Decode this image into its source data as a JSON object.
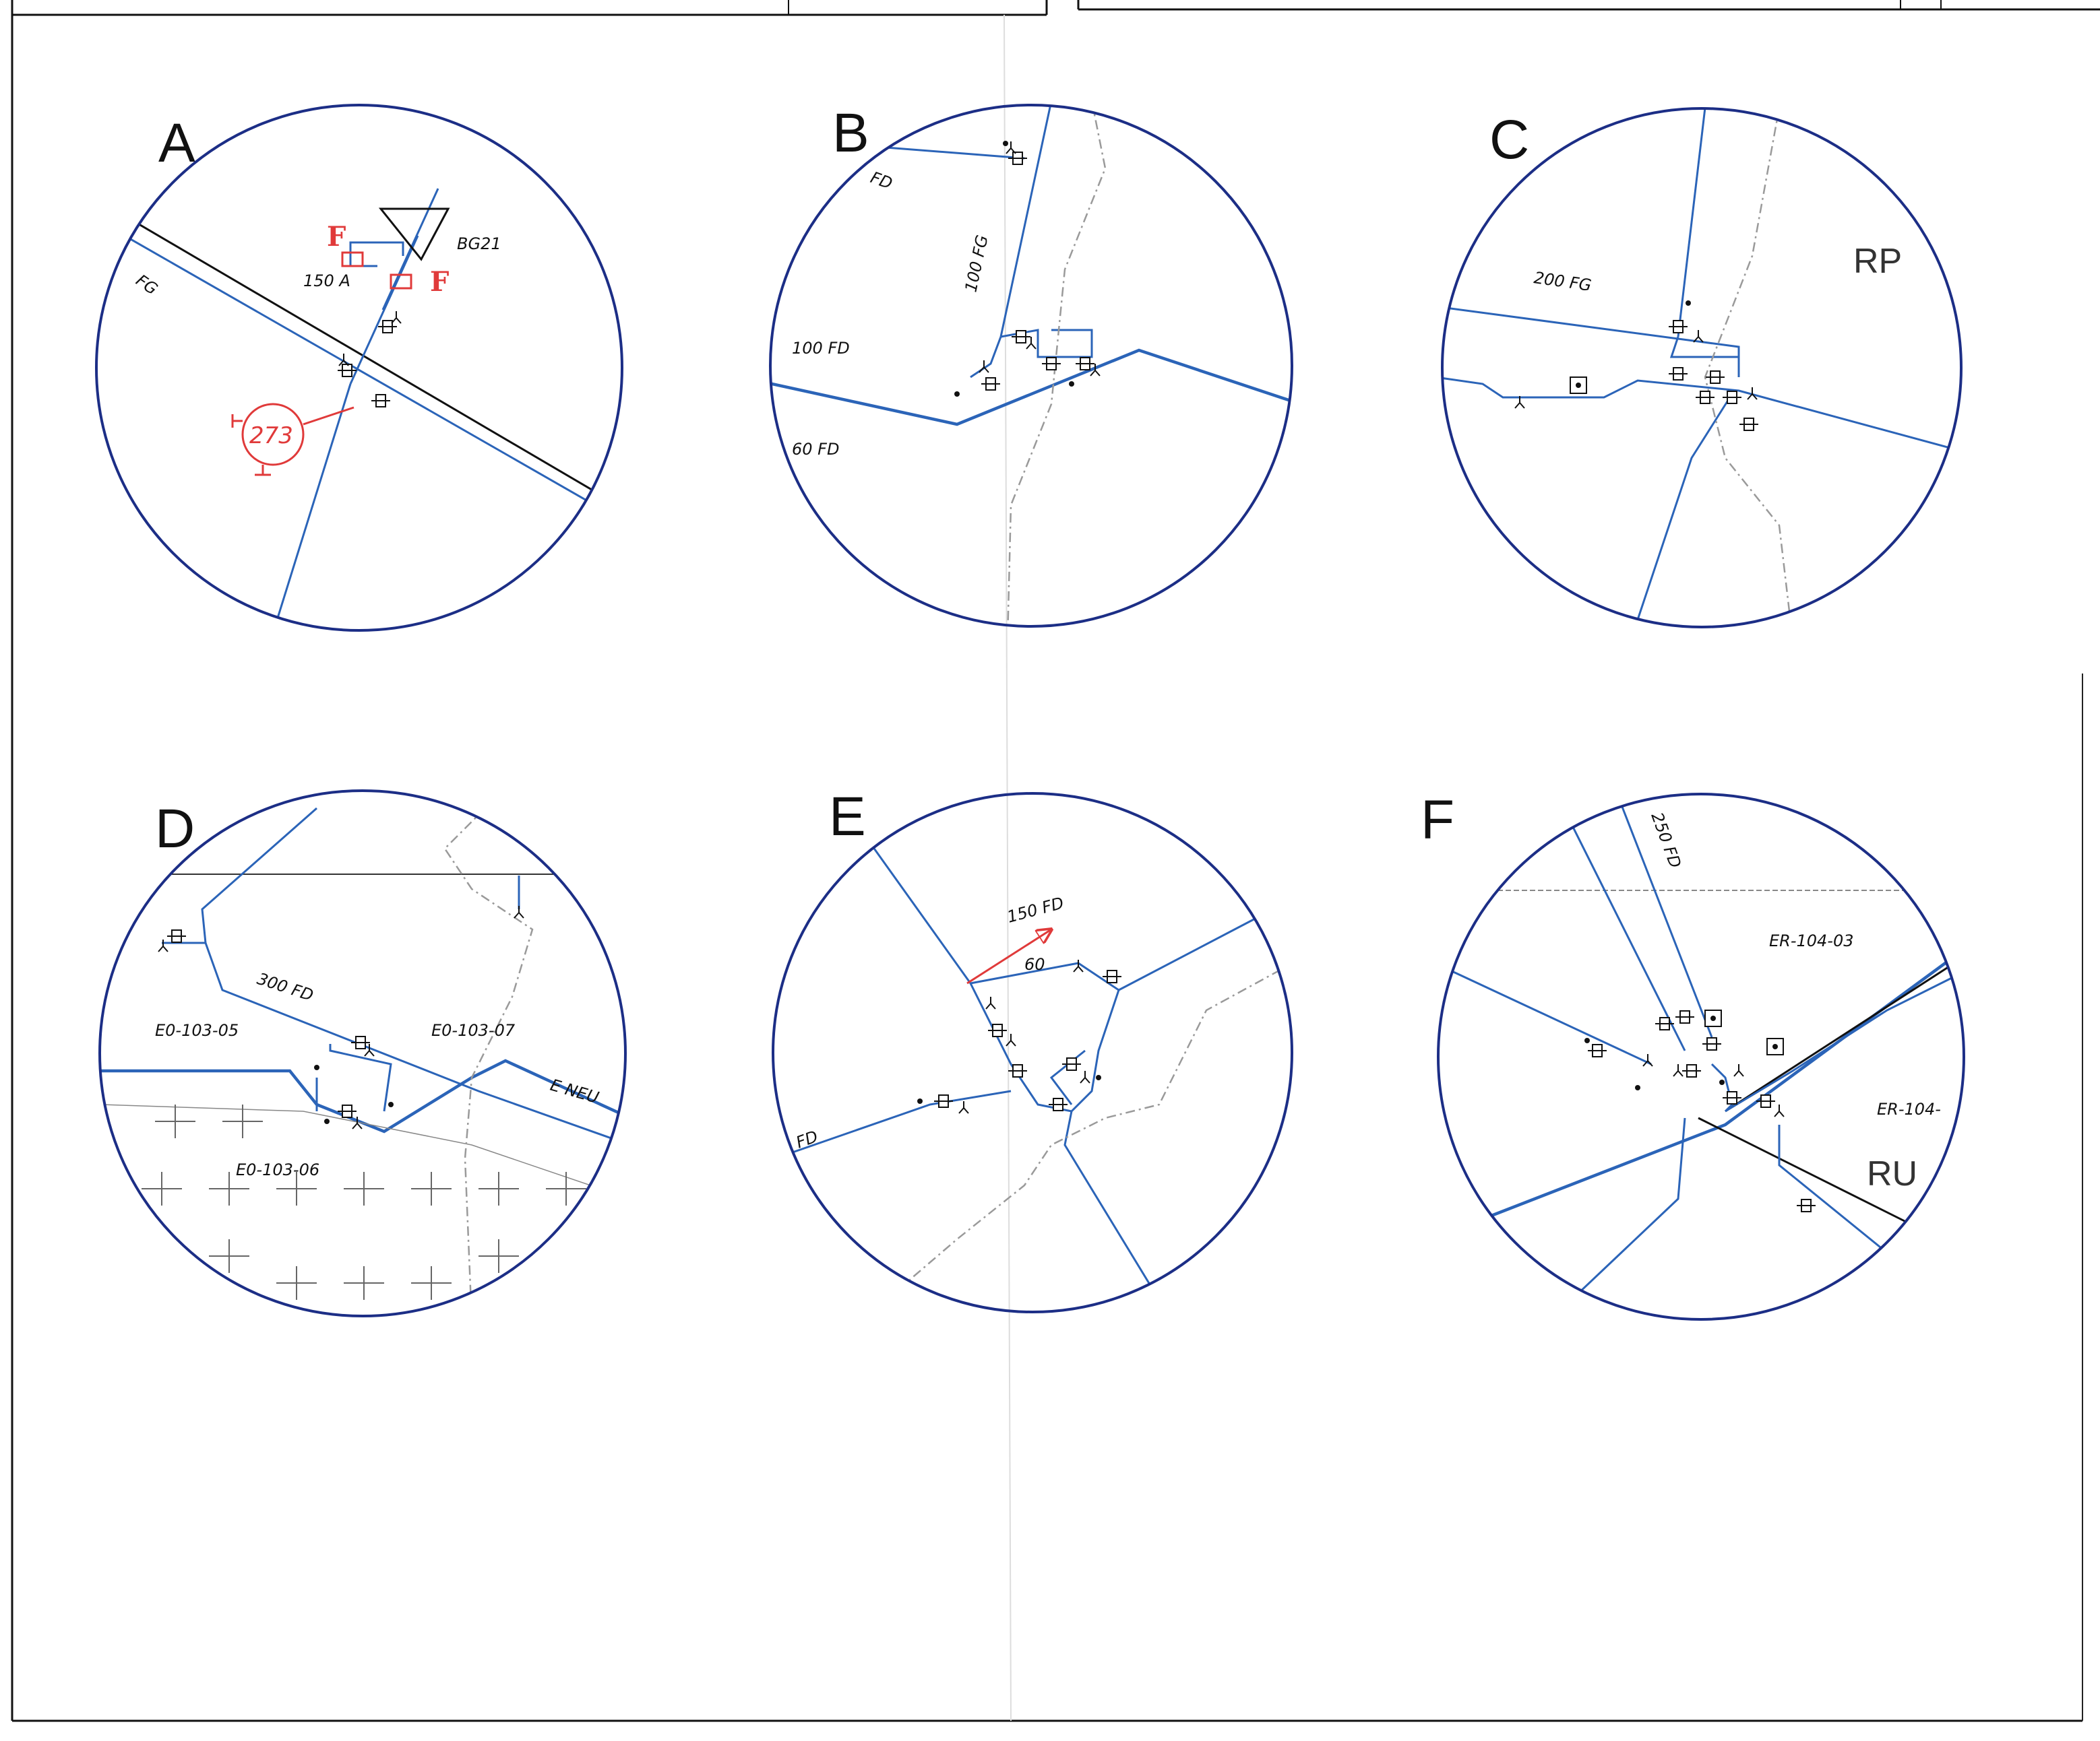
{
  "panels": [
    {
      "letter": "A",
      "labels": {
        "fg": "FG",
        "size": "150 A",
        "bg": "BG21",
        "f1": "F",
        "f2": "F",
        "num": "273"
      }
    },
    {
      "letter": "B",
      "labels": {
        "fd": "FD",
        "fg100": "100 FG",
        "fd100": "100 FD",
        "fd60": "60 FD"
      }
    },
    {
      "letter": "C",
      "labels": {
        "fg200": "200 FG",
        "rp": "RP"
      }
    },
    {
      "letter": "D",
      "labels": {
        "fd300": "300 FD",
        "e05": "E0-103-05",
        "e07": "E0-103-07",
        "e06": "E0-103-06",
        "neu": "E NEU"
      }
    },
    {
      "letter": "E",
      "labels": {
        "fd150": "150 FD",
        "n60": "60",
        "fd": "FD"
      }
    },
    {
      "letter": "F",
      "labels": {
        "fd250": "250 FD",
        "er03": "ER-104-03",
        "er04": "ER-104-",
        "ru": "RU"
      }
    }
  ]
}
